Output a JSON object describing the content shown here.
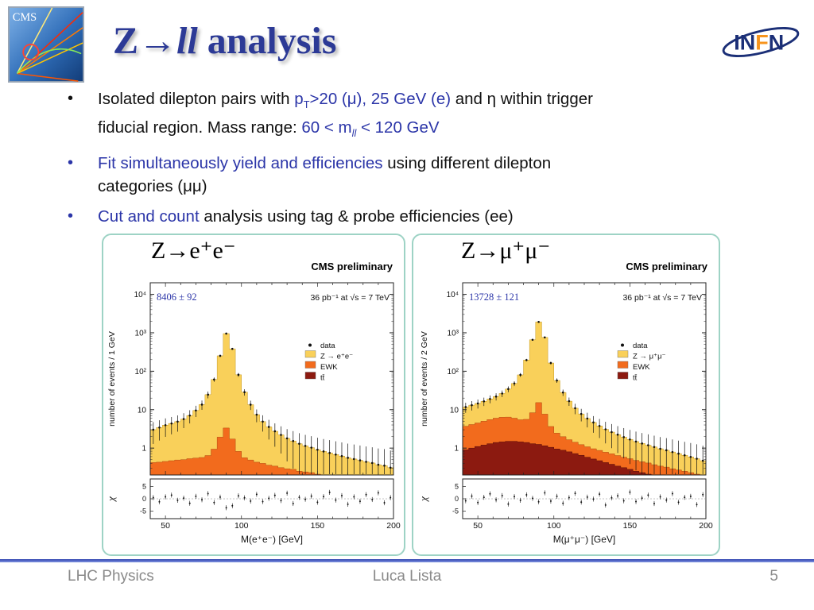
{
  "header": {
    "cms_text": "CMS",
    "title_pre": "Z→",
    "title_italic": "ll",
    "title_post": " analysis",
    "infn_in": "IN",
    "infn_f": "F",
    "infn_n": "N"
  },
  "bullets": {
    "b1": {
      "black1": "Isolated dilepton pairs with ",
      "blue_p": "p",
      "blue_p_sub": "T",
      "blue_p_rest": ">20 (μ), 25 GeV (e)",
      "black2": " and η within trigger",
      "black3": "fiducial region. Mass range: ",
      "blue_m": "60 < m",
      "blue_m_sub": "ll",
      "blue_m_rest": " < 120 GeV"
    },
    "b2": {
      "blue": "Fit simultaneously yield and efficiencies",
      "black1": " using different dilepton",
      "black2": "categories (μμ)"
    },
    "b3": {
      "blue": "Cut and count",
      "black": " analysis using tag & probe efficiencies (ee)"
    }
  },
  "footer": {
    "course": "LHC Physics",
    "author": "Luca Lista",
    "page": "5"
  },
  "colors": {
    "accent_blue": "#2B35A8",
    "title_blue": "#2C3A96",
    "panel_border_teal": "#9ED3C5",
    "signal_yellow": "#F9D05A",
    "ewk_orange": "#F26B1D",
    "ttbar_darkred": "#8C1A10"
  },
  "chart_data": [
    {
      "type": "bar",
      "subtype": "stacked-log-histogram",
      "title": "Z→e⁺e⁻",
      "watermark": "CMS preliminary",
      "yield_label": "8406 ± 92",
      "lumi_label": "36 pb⁻¹ at √s = 7 TeV",
      "ylabel": "number of events / 1 GeV",
      "xlabel": "M(e⁺e⁻) [GeV]",
      "ratio_label": "χ",
      "xlim": [
        40,
        200
      ],
      "ylim_log": [
        0.2,
        20000
      ],
      "xticks": [
        50,
        100,
        150,
        200
      ],
      "ytick_values": [
        10000,
        1000,
        100,
        10,
        1
      ],
      "ytick_labels": [
        "10⁴",
        "10³",
        "10²",
        "10",
        "1"
      ],
      "ratio_ticks": [
        5,
        0,
        -5
      ],
      "bin_width": 4,
      "x": [
        42,
        46,
        50,
        54,
        58,
        62,
        66,
        70,
        74,
        78,
        82,
        86,
        90,
        94,
        98,
        102,
        106,
        110,
        114,
        118,
        122,
        126,
        130,
        134,
        138,
        142,
        146,
        150,
        154,
        158,
        162,
        166,
        170,
        174,
        178,
        182,
        186,
        190,
        194,
        198
      ],
      "legend": [
        {
          "label": "data",
          "marker": "point"
        },
        {
          "label": "Z → e⁺e⁻",
          "color": "#F9D05A"
        },
        {
          "label": "EWK",
          "color": "#F26B1D"
        },
        {
          "label": "tt̄",
          "color": "#8C1A10"
        }
      ],
      "series": [
        {
          "name": "Z → e⁺e⁻",
          "color": "#F9D05A",
          "edge": "#C69A25",
          "values": [
            2.6,
            3.0,
            3.5,
            3.9,
            4.4,
            5.2,
            6.5,
            9,
            13,
            24,
            60,
            250,
            950,
            380,
            80,
            28,
            13,
            7,
            4.5,
            3.2,
            2.4,
            1.9,
            1.5,
            1.25,
            1.05,
            0.9,
            0.8,
            0.7,
            0.62,
            0.56,
            0.5,
            0.45,
            0.4,
            0.37,
            0.33,
            0.3,
            0.28,
            0.25,
            0.23,
            0.2
          ]
        },
        {
          "name": "EWK",
          "color": "#F26B1D",
          "edge": "#B04A10",
          "values": [
            0.3,
            0.3,
            0.32,
            0.33,
            0.35,
            0.36,
            0.38,
            0.4,
            0.42,
            0.5,
            0.8,
            1.8,
            3.2,
            1.6,
            0.7,
            0.45,
            0.38,
            0.33,
            0.3,
            0.27,
            0.25,
            0.23,
            0.21,
            0.2,
            0.18,
            0.17,
            0.16,
            0.15,
            0.14,
            0.13,
            0.12,
            0.12,
            0.11,
            0.1,
            0.1,
            0.09,
            0.09,
            0.08,
            0.08,
            0.07
          ]
        },
        {
          "name": "tt̄",
          "color": "#8C1A10",
          "edge": "#5A0E08",
          "values": [
            0.12,
            0.13,
            0.13,
            0.14,
            0.14,
            0.14,
            0.15,
            0.15,
            0.15,
            0.14,
            0.14,
            0.13,
            0.13,
            0.12,
            0.12,
            0.11,
            0.11,
            0.1,
            0.1,
            0.09,
            0.09,
            0.08,
            0.08,
            0.08,
            0.07,
            0.07,
            0.07,
            0.06,
            0.06,
            0.06,
            0.06,
            0.05,
            0.05,
            0.05,
            0.05,
            0.05,
            0.04,
            0.04,
            0.04,
            0.04
          ]
        }
      ],
      "chi": [
        0.5,
        -1.2,
        0.8,
        1.5,
        -0.6,
        0.3,
        -1.8,
        1.0,
        -0.4,
        2.1,
        -1.5,
        0.7,
        -3.6,
        -2.8,
        1.2,
        0.4,
        -0.9,
        1.8,
        -1.1,
        0.2,
        1.4,
        -0.7,
        2.3,
        -1.9,
        0.6,
        -0.2,
        1.1,
        -1.4,
        0.9,
        2.6,
        -0.5,
        1.3,
        -2.2,
        0.8,
        -1.0,
        1.7,
        -0.3,
        2.4,
        -1.6,
        0.5
      ]
    },
    {
      "type": "bar",
      "subtype": "stacked-log-histogram",
      "title": "Z→μ⁺μ⁻",
      "watermark": "CMS preliminary",
      "yield_label": "13728 ± 121",
      "lumi_label": "36 pb⁻¹ at √s = 7 TeV",
      "ylabel": "number of events / 2 GeV",
      "xlabel": "M(μ⁺μ⁻)  [GeV]",
      "ratio_label": "χ",
      "xlim": [
        40,
        200
      ],
      "ylim_log": [
        0.2,
        20000
      ],
      "xticks": [
        50,
        100,
        150,
        200
      ],
      "ytick_values": [
        10000,
        1000,
        100,
        10,
        1
      ],
      "ytick_labels": [
        "10⁴",
        "10³",
        "10²",
        "10",
        "1"
      ],
      "ratio_ticks": [
        5,
        0,
        -5
      ],
      "bin_width": 4,
      "x": [
        42,
        46,
        50,
        54,
        58,
        62,
        66,
        70,
        74,
        78,
        82,
        86,
        90,
        94,
        98,
        102,
        106,
        110,
        114,
        118,
        122,
        126,
        130,
        134,
        138,
        142,
        146,
        150,
        154,
        158,
        162,
        166,
        170,
        174,
        178,
        182,
        186,
        190,
        194,
        198
      ],
      "legend": [
        {
          "label": "data",
          "marker": "point"
        },
        {
          "label": "Z → μ⁺μ⁻",
          "color": "#F9D05A"
        },
        {
          "label": "EWK",
          "color": "#F26B1D"
        },
        {
          "label": "tt̄",
          "color": "#8C1A10"
        }
      ],
      "series": [
        {
          "name": "Z → μ⁺μ⁻",
          "color": "#F9D05A",
          "edge": "#C69A25",
          "values": [
            8,
            9,
            10,
            11.5,
            13.5,
            16,
            20,
            28,
            42,
            75,
            190,
            650,
            1900,
            750,
            160,
            55,
            26,
            15,
            9.5,
            6.5,
            4.8,
            3.7,
            2.9,
            2.3,
            1.9,
            1.6,
            1.35,
            1.15,
            1.0,
            0.88,
            0.78,
            0.7,
            0.62,
            0.56,
            0.5,
            0.45,
            0.4,
            0.36,
            0.32,
            0.28
          ]
        },
        {
          "name": "EWK",
          "color": "#F26B1D",
          "edge": "#B04A10",
          "values": [
            2.8,
            3.1,
            3.4,
            3.8,
            4.2,
            4.6,
            4.9,
            4.9,
            4.5,
            4.0,
            4.2,
            7.0,
            14,
            6.5,
            2.6,
            1.5,
            1.1,
            0.85,
            0.7,
            0.58,
            0.5,
            0.44,
            0.4,
            0.36,
            0.33,
            0.3,
            0.27,
            0.25,
            0.23,
            0.21,
            0.2,
            0.18,
            0.17,
            0.16,
            0.15,
            0.14,
            0.13,
            0.12,
            0.11,
            0.1
          ]
        },
        {
          "name": "tt̄",
          "color": "#8C1A10",
          "edge": "#5A0E08",
          "values": [
            0.9,
            1.0,
            1.1,
            1.2,
            1.3,
            1.4,
            1.45,
            1.5,
            1.5,
            1.45,
            1.4,
            1.3,
            1.25,
            1.15,
            1.05,
            0.95,
            0.88,
            0.8,
            0.72,
            0.65,
            0.58,
            0.52,
            0.47,
            0.42,
            0.38,
            0.34,
            0.31,
            0.28,
            0.25,
            0.23,
            0.21,
            0.19,
            0.17,
            0.16,
            0.14,
            0.13,
            0.12,
            0.11,
            0.1,
            0.09
          ]
        }
      ],
      "chi": [
        -0.8,
        1.1,
        -1.5,
        0.6,
        2.0,
        -0.4,
        1.3,
        -2.1,
        0.9,
        -0.6,
        1.6,
        0.2,
        -1.2,
        2.4,
        -0.9,
        1.0,
        -1.8,
        0.5,
        2.2,
        -1.3,
        0.7,
        -0.1,
        1.9,
        -2.5,
        0.4,
        1.2,
        -0.8,
        2.7,
        -1.1,
        0.3,
        1.5,
        -1.9,
        0.8,
        -0.5,
        2.1,
        -1.4,
        0.6,
        1.0,
        -2.3,
        1.7
      ]
    }
  ]
}
